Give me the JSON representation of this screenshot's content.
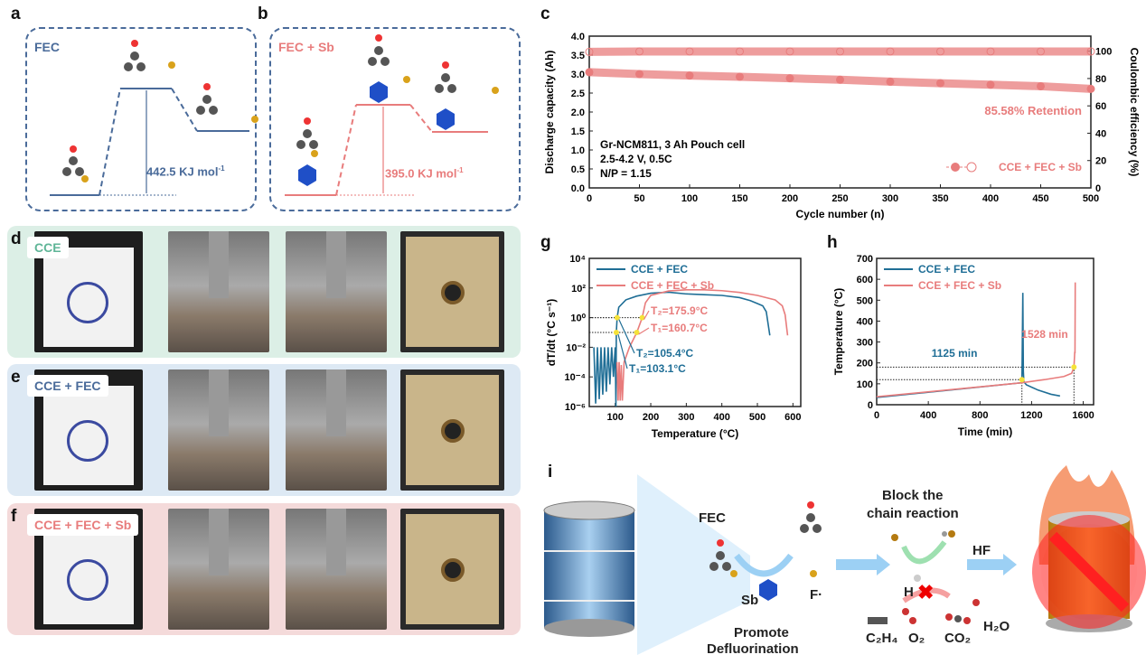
{
  "panels": {
    "a": {
      "label": "a",
      "title": "FEC",
      "energy": "442.5 KJ mol",
      "energy_sup": "-1",
      "color": "#4a6b9a"
    },
    "b": {
      "label": "b",
      "title": "FEC + Sb",
      "energy": "395.0 KJ mol",
      "energy_sup": "-1",
      "color": "#e87c7c"
    },
    "c": {
      "label": "c"
    },
    "d": {
      "label": "d",
      "tag": "CCE",
      "tag_color": "#5fb597",
      "bg": "#dcefe6"
    },
    "e": {
      "label": "e",
      "tag": "CCE + FEC",
      "tag_color": "#4a6b9a",
      "bg": "#dde9f4"
    },
    "f": {
      "label": "f",
      "tag": "CCE + FEC + Sb",
      "tag_color": "#e87c7c",
      "bg": "#f4dada"
    },
    "g": {
      "label": "g"
    },
    "h": {
      "label": "h"
    },
    "i": {
      "label": "i",
      "fec": "FEC",
      "sb": "Sb",
      "f_radical": "F·",
      "promote": "Promote",
      "defluorination": "Defluorination",
      "block1": "Block the",
      "block2": "chain reaction",
      "hf": "HF",
      "h": "H",
      "c2h4": "C₂H₄",
      "o2": "O₂",
      "co2": "CO₂",
      "h2o": "H₂O"
    }
  },
  "chart_data": [
    {
      "id": "c",
      "type": "scatter",
      "xlabel": "Cycle number (n)",
      "ylabel": "Discharge capacity (Ah)",
      "ylabel_right": "Coulombic efficiency (%)",
      "xlim": [
        0,
        500
      ],
      "ylim": [
        0,
        4.0
      ],
      "ylim_right": [
        0,
        111
      ],
      "xticks": [
        0,
        50,
        100,
        150,
        200,
        250,
        300,
        350,
        400,
        450,
        500
      ],
      "yticks": [
        "0.0",
        "0.5",
        "1.0",
        "1.5",
        "2.0",
        "2.5",
        "3.0",
        "3.5",
        "4.0"
      ],
      "yticks_right": [
        0,
        20,
        40,
        60,
        80,
        100
      ],
      "annotations": [
        "Gr-NCM811, 3 Ah Pouch cell",
        "2.5-4.2 V, 0.5C",
        "N/P = 1.15"
      ],
      "retention": "85.58% Retention",
      "legend": "CCE + FEC + Sb",
      "legend_position": "bottom-right",
      "color": "#e87c7c",
      "series": [
        {
          "name": "CCE + FEC + Sb",
          "axis": "left",
          "x": [
            0,
            50,
            100,
            150,
            200,
            250,
            300,
            350,
            400,
            450,
            500
          ],
          "y": [
            3.05,
            3.0,
            2.96,
            2.93,
            2.89,
            2.85,
            2.8,
            2.76,
            2.72,
            2.68,
            2.61
          ]
        },
        {
          "name": "CCE + FEC + Sb",
          "axis": "right",
          "x": [
            0,
            50,
            100,
            150,
            200,
            250,
            300,
            350,
            400,
            450,
            500
          ],
          "y": [
            99.5,
            99.8,
            99.8,
            99.8,
            99.8,
            99.8,
            99.8,
            99.8,
            99.8,
            99.8,
            99.8
          ]
        }
      ]
    },
    {
      "id": "g",
      "type": "line",
      "xlabel": "Temperature (°C)",
      "ylabel": "dT/dt (°C s⁻¹)",
      "xlim": [
        27,
        622
      ],
      "ylim": [
        -6,
        4
      ],
      "yscale": "log",
      "xticks": [
        100,
        200,
        300,
        400,
        500,
        600
      ],
      "yticks": [
        "10⁻⁶",
        "10⁻⁴",
        "10⁻²",
        "10⁰",
        "10²",
        "10⁴"
      ],
      "legend_position": "top-left",
      "series": [
        {
          "name": "CCE + FEC",
          "color": "#1f6e96",
          "x": [
            40,
            45,
            50,
            55,
            60,
            65,
            70,
            75,
            80,
            85,
            90,
            95,
            100,
            102,
            103.1,
            105.4,
            110,
            130,
            160,
            200,
            250,
            300,
            350,
            400,
            450,
            480,
            500,
            515,
            525,
            535
          ],
          "log_y": [
            -2,
            -5.8,
            -2,
            -5.5,
            -2,
            -5.2,
            -2,
            -5,
            -2,
            -4.5,
            -2,
            -4,
            -2,
            -6,
            -1,
            0,
            0.7,
            1.2,
            1.45,
            1.65,
            1.72,
            1.6,
            1.55,
            1.5,
            1.35,
            1.15,
            0.95,
            0.8,
            0.4,
            -1.2
          ]
        },
        {
          "name": "CCE + FEC + Sb",
          "color": "#e87c7c",
          "x": [
            105,
            108,
            111,
            114,
            117,
            120,
            125,
            140,
            160.7,
            175.9,
            185,
            200,
            250,
            300,
            350,
            400,
            450,
            500,
            550,
            570,
            578,
            585
          ],
          "log_y": [
            -3,
            -5.6,
            -3,
            -5.6,
            -3.2,
            -5.6,
            -3,
            -2,
            -1,
            0,
            1,
            1.5,
            1.8,
            1.88,
            1.88,
            1.82,
            1.7,
            1.5,
            1.2,
            0.8,
            0.2,
            -1.2
          ]
        }
      ],
      "markers": [
        {
          "label": "T₁=103.1°C",
          "x": 103.1,
          "log_y": -1,
          "color": "#1f6e96"
        },
        {
          "label": "T₂=105.4°C",
          "x": 105.4,
          "log_y": 0,
          "color": "#1f6e96"
        },
        {
          "label": "T₁=160.7°C",
          "x": 160.7,
          "log_y": -1,
          "color": "#e87c7c"
        },
        {
          "label": "T₂=175.9°C",
          "x": 175.9,
          "log_y": 0,
          "color": "#e87c7c"
        }
      ]
    },
    {
      "id": "h",
      "type": "line",
      "xlabel": "Time (min)",
      "ylabel": "Temperature (°C)",
      "xlim": [
        0,
        1680
      ],
      "ylim": [
        0,
        700
      ],
      "xticks": [
        0,
        400,
        800,
        1200,
        1600
      ],
      "yticks": [
        0,
        100,
        200,
        300,
        400,
        500,
        600,
        700
      ],
      "legend_position": "top-left",
      "series": [
        {
          "name": "CCE + FEC",
          "color": "#1f6e96",
          "x": [
            0,
            1125,
            1132,
            1136,
            1140,
            1160,
            1250,
            1350,
            1420
          ],
          "y": [
            35,
            105,
            535,
            160,
            110,
            95,
            70,
            50,
            42
          ]
        },
        {
          "name": "CCE + FEC + Sb",
          "color": "#e87c7c",
          "x": [
            0,
            1125,
            1300,
            1450,
            1510,
            1528,
            1534,
            1536,
            1538
          ],
          "y": [
            38,
            105,
            120,
            135,
            150,
            180,
            250,
            250,
            585
          ]
        }
      ],
      "markers": [
        {
          "label": "1125 min",
          "x": 1125,
          "y": 120,
          "color": "#1f6e96"
        },
        {
          "label": "1528 min",
          "x": 1528,
          "y": 180,
          "color": "#e87c7c"
        }
      ]
    }
  ]
}
